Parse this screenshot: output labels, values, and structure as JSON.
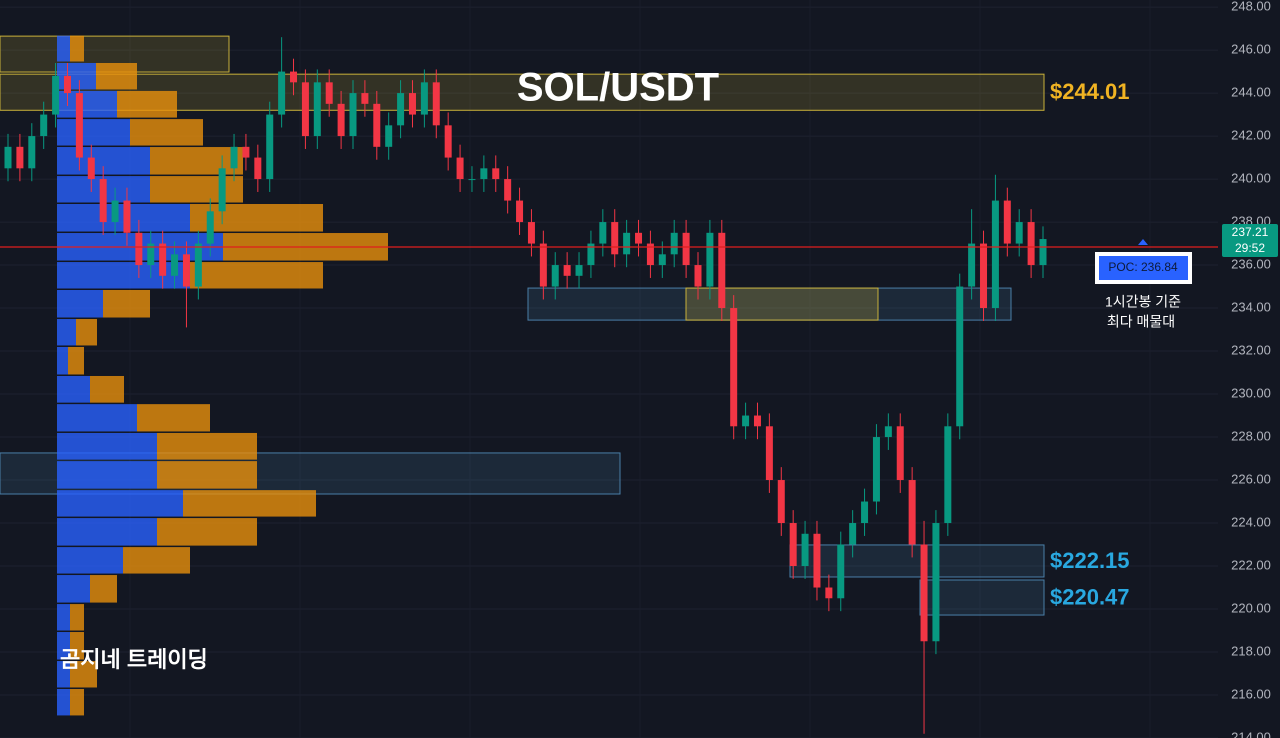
{
  "chart_data": {
    "type": "candlestick",
    "title": "SOL/USDT",
    "annotations": {
      "brand": "곰지네 트레이딩",
      "poc_note_line1": "1시간봉 기준",
      "poc_note_line2": "최다 매물대",
      "poc_label": "POC: 236.84",
      "countdown": "29:52"
    },
    "ylim": [
      214,
      248.33
    ],
    "yticks": [
      {
        "value": 214,
        "label": "214.00"
      },
      {
        "value": 216,
        "label": "216.00"
      },
      {
        "value": 218,
        "label": "218.00"
      },
      {
        "value": 220,
        "label": "220.00"
      },
      {
        "value": 222,
        "label": "222.00"
      },
      {
        "value": 224,
        "label": "224.00"
      },
      {
        "value": 226,
        "label": "226.00"
      },
      {
        "value": 228,
        "label": "228.00"
      },
      {
        "value": 230,
        "label": "230.00"
      },
      {
        "value": 232,
        "label": "232.00"
      },
      {
        "value": 234,
        "label": "234.00"
      },
      {
        "value": 236,
        "label": "236.00"
      },
      {
        "value": 238,
        "label": "238.00"
      },
      {
        "value": 240,
        "label": "240.00"
      },
      {
        "value": 242,
        "label": "242.00"
      },
      {
        "value": 244,
        "label": "244.00"
      },
      {
        "value": 246,
        "label": "246.00"
      },
      {
        "value": 248,
        "label": "248.00"
      }
    ],
    "grid": true,
    "up_color": "#089981",
    "down_color": "#f23645",
    "last_price": {
      "value": 237.21,
      "label": "237.21",
      "color": "#089981"
    },
    "poc_line": {
      "value": 236.84,
      "color": "#e01e1e"
    },
    "candles": {
      "open": [
        240.5,
        241.5,
        240.5,
        242,
        243,
        244.8,
        244,
        241,
        240,
        238,
        239,
        237.5,
        236,
        237,
        235.5,
        236.5,
        235,
        237,
        238.5,
        240.5,
        241.5,
        241,
        240,
        243,
        245,
        244.5,
        242,
        244.5,
        243.5,
        242,
        244,
        243.5,
        241.5,
        242.5,
        244,
        243,
        244.5,
        242.5,
        241,
        240,
        240,
        240.5,
        240,
        239,
        238,
        237,
        235,
        236,
        235.5,
        236,
        237,
        238,
        236.5,
        237.5,
        237,
        236,
        236.5,
        237.5,
        236,
        235,
        237.5,
        234,
        228.5,
        229,
        228.5,
        226,
        224,
        222,
        223.5,
        221,
        220.5,
        223,
        224,
        225,
        228,
        228.5,
        226,
        223,
        218.5,
        224,
        228.5,
        235,
        237,
        234,
        239,
        237,
        238,
        236
      ],
      "high": [
        242.1,
        242.1,
        242.6,
        243.6,
        245.4,
        245.4,
        244.6,
        241.6,
        240.6,
        239.6,
        239.6,
        238.1,
        237.6,
        237.6,
        237.1,
        237.1,
        237.6,
        239.1,
        241.1,
        242.1,
        242.1,
        241.6,
        243.6,
        246.6,
        245.6,
        245.1,
        245.1,
        245.1,
        244.1,
        244.6,
        244.6,
        244.1,
        243.1,
        244.6,
        244.6,
        245.1,
        245.1,
        243.1,
        241.6,
        240.6,
        241.1,
        241.1,
        240.6,
        239.6,
        238.6,
        237.6,
        236.6,
        236.6,
        236.6,
        237.6,
        238.6,
        238.6,
        238.1,
        238.1,
        237.6,
        237.1,
        238.1,
        238.1,
        236.6,
        238.1,
        238.1,
        234.6,
        229.6,
        229.6,
        229.1,
        226.6,
        224.6,
        224.1,
        224.1,
        221.6,
        223.6,
        224.6,
        225.6,
        228.6,
        229.1,
        229.1,
        226.6,
        224.1,
        224.6,
        229.1,
        235.6,
        238.6,
        237.6,
        240.2,
        239.6,
        238.6,
        238.6,
        237.8
      ],
      "low": [
        239.9,
        239.9,
        239.9,
        241.4,
        242.4,
        243.4,
        240.4,
        239.4,
        237.4,
        237.4,
        236.9,
        235.4,
        235.4,
        234.9,
        234.9,
        233.1,
        234.4,
        236.4,
        237.9,
        239.9,
        240.4,
        239.4,
        239.4,
        242.4,
        243.9,
        241.4,
        241.4,
        242.9,
        241.4,
        241.4,
        242.9,
        240.9,
        240.9,
        241.9,
        242.4,
        242.4,
        241.9,
        240.4,
        239.4,
        239.4,
        239.4,
        239.4,
        238.4,
        237.4,
        236.4,
        234.4,
        234.4,
        234.9,
        234.9,
        235.4,
        236.4,
        235.9,
        235.9,
        236.4,
        235.4,
        235.4,
        235.9,
        235.4,
        234.4,
        234.4,
        233.4,
        227.9,
        227.9,
        227.9,
        225.4,
        223.4,
        221.4,
        221.4,
        220.4,
        219.9,
        219.9,
        222.4,
        223.4,
        224.4,
        227.4,
        225.4,
        222.4,
        214.2,
        217.9,
        223.4,
        227.9,
        234.4,
        233.4,
        233.4,
        236.4,
        236.4,
        235.4,
        235.4
      ],
      "close": [
        241.5,
        240.5,
        242,
        243,
        244.8,
        244,
        241,
        240,
        238,
        239,
        237.5,
        236,
        237,
        235.5,
        236.5,
        235,
        237,
        238.5,
        240.5,
        241.5,
        241,
        240,
        243,
        245,
        244.5,
        242,
        244.5,
        243.5,
        242,
        244,
        243.5,
        241.5,
        242.5,
        244,
        243,
        244.5,
        242.5,
        241,
        240,
        240,
        240.5,
        240,
        239,
        238,
        237,
        235,
        236,
        235.5,
        236,
        237,
        238,
        236.5,
        237.5,
        237,
        236,
        236.5,
        237.5,
        236,
        235,
        237.5,
        234,
        228.5,
        229,
        228.5,
        226,
        224,
        222,
        223.5,
        221,
        220.5,
        223,
        224,
        225,
        228,
        228.5,
        226,
        223,
        218.5,
        224,
        228.5,
        235,
        237,
        234,
        239,
        237,
        238,
        236,
        237.21
      ]
    },
    "volume_profile": {
      "buy_color": "#2962ff",
      "sell_color": "#e8900c",
      "price_top": [
        246.67,
        245.4,
        244.1,
        242.79,
        241.49,
        240.14,
        238.84,
        237.49,
        236.14,
        234.84,
        233.49,
        232.19,
        230.84,
        229.53,
        228.19,
        226.88,
        225.53,
        224.23,
        222.88,
        221.58,
        220.23,
        218.93,
        217.58,
        216.28
      ],
      "buy": [
        13,
        39,
        60,
        73,
        93,
        93,
        133,
        166,
        133,
        46,
        19,
        11,
        33,
        80,
        100,
        100,
        126,
        100,
        66,
        33,
        13,
        13,
        13,
        13
      ],
      "sell": [
        14,
        41,
        60,
        73,
        93,
        93,
        133,
        165,
        133,
        47,
        21,
        16,
        34,
        73,
        100,
        100,
        133,
        100,
        67,
        27,
        14,
        14,
        27,
        14
      ]
    },
    "zones": [
      {
        "top": 246.65,
        "bottom": 244.98,
        "color": "#c9b13a"
      },
      {
        "top": 244.88,
        "bottom": 243.2,
        "color": "#c9b13a",
        "label": "$244.01",
        "label_color": "#f0b323"
      },
      {
        "top": 234.93,
        "bottom": 233.44,
        "color": "#4a7fa8"
      },
      {
        "top": 227.26,
        "bottom": 225.35,
        "color": "#4a7fa8"
      },
      {
        "top": 222.98,
        "bottom": 221.49,
        "color": "#4a7fa8",
        "label": "$222.15",
        "label_color": "#29a8e0"
      },
      {
        "top": 221.35,
        "bottom": 219.72,
        "color": "#4a7fa8",
        "label": "$220.47",
        "label_color": "#29a8e0"
      }
    ]
  }
}
